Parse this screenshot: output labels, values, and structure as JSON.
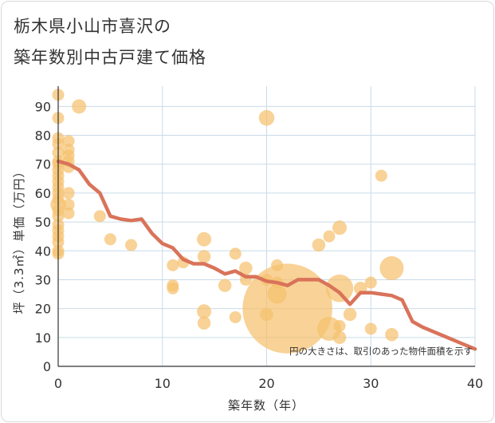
{
  "title_lines": [
    "栃木県小山市喜沢の",
    "築年数別中古戸建て価格"
  ],
  "chart_data": {
    "type": "scatter",
    "title": "栃木県小山市喜沢の築年数別中古戸建て価格",
    "xlabel": "築年数（年）",
    "ylabel": "坪（3.3㎡）単価（万円）",
    "xlim": [
      0,
      40
    ],
    "ylim": [
      0,
      97
    ],
    "x_ticks": [
      0,
      10,
      20,
      30,
      40
    ],
    "y_ticks": [
      0,
      10,
      20,
      30,
      40,
      50,
      60,
      70,
      80,
      90
    ],
    "grid": true,
    "annotation": "円の大きさは、取引のあった物件面積を示す",
    "colors": {
      "bubble": "#f5c16e",
      "trend": "#d9735a",
      "grid": "#c9dbe8",
      "axis": "#333333"
    },
    "scatter_points": [
      {
        "x": 0,
        "y": 94,
        "size": 1
      },
      {
        "x": 0,
        "y": 86,
        "size": 1
      },
      {
        "x": 0,
        "y": 79,
        "size": 1
      },
      {
        "x": 0,
        "y": 77,
        "size": 1
      },
      {
        "x": 0,
        "y": 74,
        "size": 1
      },
      {
        "x": 0,
        "y": 71,
        "size": 1
      },
      {
        "x": 0,
        "y": 70,
        "size": 1
      },
      {
        "x": 0,
        "y": 68,
        "size": 1
      },
      {
        "x": 0,
        "y": 66,
        "size": 1
      },
      {
        "x": 0,
        "y": 64,
        "size": 1
      },
      {
        "x": 0,
        "y": 62,
        "size": 1
      },
      {
        "x": 0,
        "y": 60,
        "size": 1
      },
      {
        "x": 0,
        "y": 58,
        "size": 1
      },
      {
        "x": 0,
        "y": 56,
        "size": 1.3
      },
      {
        "x": 0,
        "y": 54,
        "size": 1
      },
      {
        "x": 0,
        "y": 52,
        "size": 1
      },
      {
        "x": 0,
        "y": 49,
        "size": 1
      },
      {
        "x": 0,
        "y": 47,
        "size": 1
      },
      {
        "x": 0,
        "y": 45,
        "size": 1
      },
      {
        "x": 0,
        "y": 43,
        "size": 1
      },
      {
        "x": 0,
        "y": 40,
        "size": 1
      },
      {
        "x": 0,
        "y": 39,
        "size": 1
      },
      {
        "x": 1,
        "y": 78,
        "size": 1
      },
      {
        "x": 1,
        "y": 75,
        "size": 1
      },
      {
        "x": 1,
        "y": 73,
        "size": 1
      },
      {
        "x": 1,
        "y": 71,
        "size": 1
      },
      {
        "x": 1,
        "y": 69,
        "size": 1
      },
      {
        "x": 1,
        "y": 60,
        "size": 1
      },
      {
        "x": 1,
        "y": 56,
        "size": 1
      },
      {
        "x": 1,
        "y": 53,
        "size": 1
      },
      {
        "x": 2,
        "y": 90,
        "size": 1.2
      },
      {
        "x": 4,
        "y": 52,
        "size": 1
      },
      {
        "x": 5,
        "y": 44,
        "size": 1
      },
      {
        "x": 7,
        "y": 42,
        "size": 1
      },
      {
        "x": 11,
        "y": 35,
        "size": 1
      },
      {
        "x": 11,
        "y": 28,
        "size": 1
      },
      {
        "x": 11,
        "y": 27,
        "size": 1
      },
      {
        "x": 12,
        "y": 36,
        "size": 1
      },
      {
        "x": 14,
        "y": 44,
        "size": 1.2
      },
      {
        "x": 14,
        "y": 38,
        "size": 1.1
      },
      {
        "x": 14,
        "y": 19,
        "size": 1.2
      },
      {
        "x": 14,
        "y": 15,
        "size": 1.1
      },
      {
        "x": 16,
        "y": 28,
        "size": 1.1
      },
      {
        "x": 17,
        "y": 39,
        "size": 1
      },
      {
        "x": 17,
        "y": 17,
        "size": 1
      },
      {
        "x": 18,
        "y": 34,
        "size": 1.1
      },
      {
        "x": 18,
        "y": 30,
        "size": 1
      },
      {
        "x": 20,
        "y": 86,
        "size": 1.3
      },
      {
        "x": 20,
        "y": 30,
        "size": 1
      },
      {
        "x": 20,
        "y": 18,
        "size": 1.1
      },
      {
        "x": 21,
        "y": 35,
        "size": 1
      },
      {
        "x": 21,
        "y": 29,
        "size": 1
      },
      {
        "x": 21,
        "y": 25,
        "size": 1.6
      },
      {
        "x": 22,
        "y": 20,
        "size": 7.5
      },
      {
        "x": 25,
        "y": 42,
        "size": 1.1
      },
      {
        "x": 26,
        "y": 45,
        "size": 1
      },
      {
        "x": 26,
        "y": 13,
        "size": 2
      },
      {
        "x": 27,
        "y": 48,
        "size": 1.2
      },
      {
        "x": 27,
        "y": 27,
        "size": 2.3
      },
      {
        "x": 27,
        "y": 14,
        "size": 1
      },
      {
        "x": 27,
        "y": 10,
        "size": 1.1
      },
      {
        "x": 28,
        "y": 18,
        "size": 1.1
      },
      {
        "x": 29,
        "y": 27,
        "size": 1.1
      },
      {
        "x": 30,
        "y": 29,
        "size": 1
      },
      {
        "x": 30,
        "y": 13,
        "size": 1
      },
      {
        "x": 31,
        "y": 66,
        "size": 1
      },
      {
        "x": 32,
        "y": 34,
        "size": 2
      },
      {
        "x": 32,
        "y": 11,
        "size": 1.1
      }
    ],
    "trend_line": {
      "x": [
        0,
        1,
        2,
        3,
        4,
        5,
        6,
        7,
        8,
        9,
        10,
        11,
        12,
        13,
        14,
        15,
        16,
        17,
        18,
        19,
        20,
        21,
        22,
        23,
        24,
        25,
        26,
        27,
        28,
        29,
        30,
        31,
        32,
        33,
        34,
        35,
        36,
        37,
        38,
        39,
        40
      ],
      "y": [
        71,
        70,
        68,
        63,
        60,
        52,
        51,
        50.5,
        51,
        46,
        42.5,
        41,
        37,
        35.5,
        35.5,
        34,
        32,
        33,
        31,
        31,
        29.5,
        29,
        28,
        30,
        30,
        30,
        28,
        25.5,
        21.5,
        25.5,
        25.5,
        25,
        24.5,
        23,
        15.5,
        13.5,
        12,
        10.5,
        9,
        7.5,
        6
      ]
    }
  }
}
